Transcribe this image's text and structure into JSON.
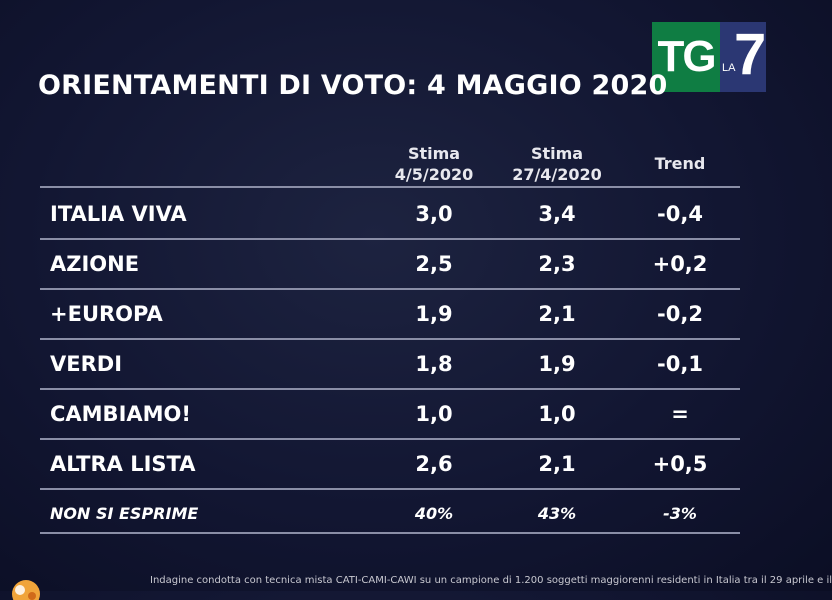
{
  "logo": {
    "tg": "TG",
    "la": "LA",
    "seven": "7"
  },
  "chart_data": {
    "type": "table",
    "title": "ORIENTAMENTI DI VOTO: 4 MAGGIO 2020",
    "columns": [
      {
        "line1": "Stima",
        "line2": "4/5/2020"
      },
      {
        "line1": "Stima",
        "line2": "27/4/2020"
      },
      {
        "line1": "Trend",
        "line2": ""
      }
    ],
    "rows": [
      {
        "label": "ITALIA VIVA",
        "values": [
          "3,0",
          "3,4",
          "-0,4"
        ]
      },
      {
        "label": "AZIONE",
        "values": [
          "2,5",
          "2,3",
          "+0,2"
        ]
      },
      {
        "label": "+EUROPA",
        "values": [
          "1,9",
          "2,1",
          "-0,2"
        ]
      },
      {
        "label": "VERDI",
        "values": [
          "1,8",
          "1,9",
          "-0,1"
        ]
      },
      {
        "label": "CAMBIAMO!",
        "values": [
          "1,0",
          "1,0",
          "="
        ]
      },
      {
        "label": "ALTRA LISTA",
        "values": [
          "2,6",
          "2,1",
          "+0,5"
        ]
      }
    ],
    "footer_row": {
      "label": "NON SI ESPRIME",
      "values": [
        "40%",
        "43%",
        "-3%"
      ]
    }
  },
  "footnote": "Indagine condotta con tecnica mista CATI-CAMI-CAWI su un campione di 1.200 soggetti maggiorenni residenti in Italia tra il 29 aprile e il"
}
